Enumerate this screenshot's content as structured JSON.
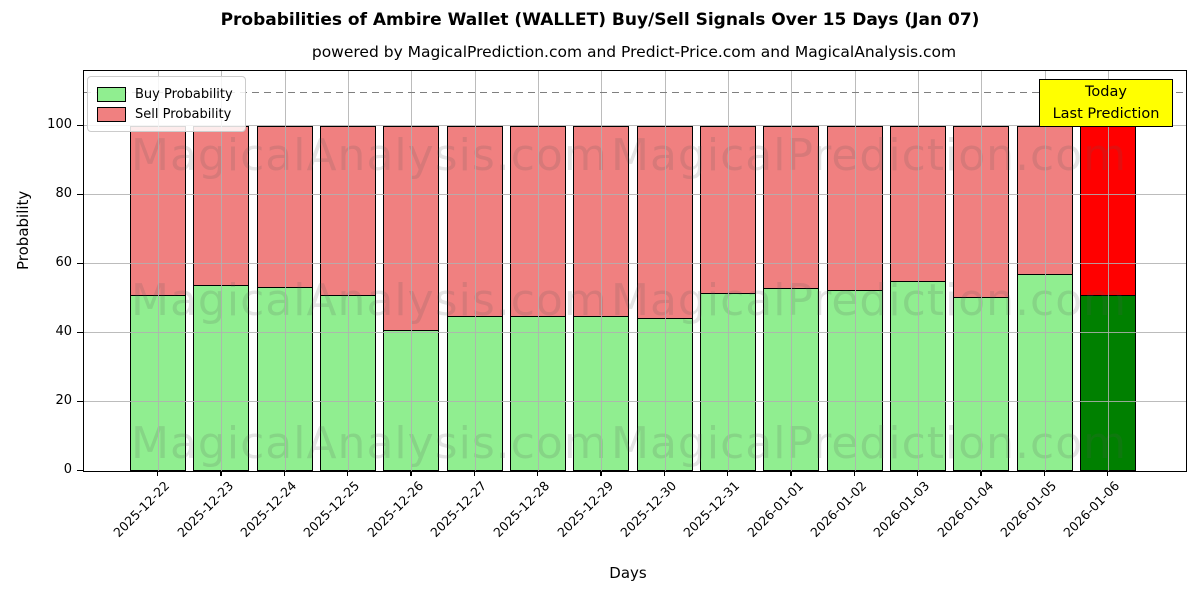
{
  "title": "Probabilities of Ambire Wallet (WALLET) Buy/Sell Signals Over 15 Days (Jan 07)",
  "subtitle": "powered by MagicalPrediction.com and Predict-Price.com and MagicalAnalysis.com",
  "legend": {
    "buy_label": "Buy Probability",
    "sell_label": "Sell Probability"
  },
  "annotation_box": {
    "line1": "Today",
    "line2": "Last Prediction",
    "bg_color": "#FFFF00",
    "border_color": "#000000"
  },
  "watermark": {
    "left_text": "MagicalAnalysis.com",
    "right_text": "MagicalPrediction.com"
  },
  "chart_data": {
    "type": "bar",
    "stacked": true,
    "title": "Probabilities of Ambire Wallet (WALLET) Buy/Sell Signals Over 15 Days (Jan 07)",
    "xlabel": "Days",
    "ylabel": "Probability",
    "categories": [
      "2025-12-22",
      "2025-12-23",
      "2025-12-24",
      "2025-12-25",
      "2025-12-26",
      "2025-12-27",
      "2025-12-28",
      "2025-12-29",
      "2025-12-30",
      "2025-12-31",
      "2026-01-01",
      "2026-01-02",
      "2026-01-03",
      "2026-01-04",
      "2026-01-05",
      "2026-01-06"
    ],
    "series": [
      {
        "name": "Buy Probability",
        "color": "#90EE90",
        "today_color": "#008000",
        "values": [
          51,
          54,
          53.5,
          51,
          41,
          45,
          45,
          45,
          44.5,
          51.5,
          53,
          52.5,
          55,
          50.5,
          57,
          51
        ]
      },
      {
        "name": "Sell Probability",
        "color": "#F08080",
        "today_color": "#FF0000",
        "values": [
          49,
          46,
          46.5,
          49,
          59,
          55,
          55,
          55,
          55.5,
          48.5,
          47,
          47.5,
          45,
          49.5,
          43,
          49
        ]
      }
    ],
    "today_index": 15,
    "ylim": [
      0,
      116
    ],
    "yticks": [
      0,
      20,
      40,
      60,
      80,
      100
    ],
    "dashed_line_y": 110,
    "grid": true,
    "legend_position": "upper left",
    "bar_edge_color": "#000000"
  }
}
